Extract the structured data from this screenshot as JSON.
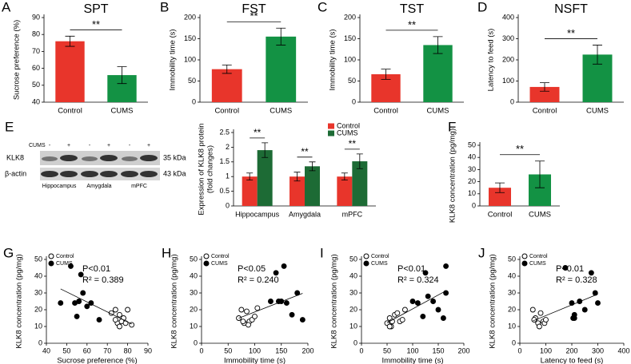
{
  "chart_data": [
    {
      "type": "bar",
      "panel": "A",
      "title": "SPT",
      "ylabel": "Sucrose preference (%)",
      "categories": [
        "Control",
        "CUMS"
      ],
      "values": [
        76,
        56
      ],
      "errors": [
        3,
        5
      ],
      "colors": [
        "#e8352b",
        "#139244"
      ],
      "ylim": [
        40,
        90
      ],
      "yticks": [
        40,
        50,
        60,
        70,
        80,
        90
      ],
      "significance": "**"
    },
    {
      "type": "bar",
      "panel": "B",
      "title": "FST",
      "ylabel": "Immobility time (s)",
      "categories": [
        "Control",
        "CUMS"
      ],
      "values": [
        78,
        155
      ],
      "errors": [
        10,
        20
      ],
      "colors": [
        "#e8352b",
        "#139244"
      ],
      "ylim": [
        0,
        200
      ],
      "yticks": [
        0,
        50,
        100,
        150,
        200
      ],
      "significance": "**"
    },
    {
      "type": "bar",
      "panel": "C",
      "title": "TST",
      "ylabel": "Immobility time (s)",
      "categories": [
        "Control",
        "CUMS"
      ],
      "values": [
        66,
        135
      ],
      "errors": [
        12,
        20
      ],
      "colors": [
        "#e8352b",
        "#139244"
      ],
      "ylim": [
        0,
        200
      ],
      "yticks": [
        0,
        50,
        100,
        150,
        200
      ],
      "significance": "**"
    },
    {
      "type": "bar",
      "panel": "D",
      "title": "NSFT",
      "ylabel": "Latency  to feed (s)",
      "categories": [
        "Control",
        "CUMS"
      ],
      "values": [
        72,
        225
      ],
      "errors": [
        20,
        45
      ],
      "colors": [
        "#e8352b",
        "#139244"
      ],
      "ylim": [
        0,
        400
      ],
      "yticks": [
        0,
        100,
        200,
        300,
        400
      ],
      "significance": "**"
    },
    {
      "type": "grouped_bar",
      "ylabel": [
        "Expression of KLK8 protein",
        "(fold changes)"
      ],
      "categories": [
        "Hippocampus",
        "Amygdala",
        "mPFC"
      ],
      "series": [
        {
          "name": "Control",
          "color": "#e8352b",
          "values": [
            1,
            1,
            1
          ],
          "errors": [
            0.12,
            0.15,
            0.12
          ]
        },
        {
          "name": "CUMS",
          "color": "#1d6b35",
          "values": [
            1.9,
            1.35,
            1.52
          ],
          "errors": [
            0.25,
            0.15,
            0.25
          ]
        }
      ],
      "ylim": [
        0,
        2.5
      ],
      "yticks": [
        0,
        0.5,
        1,
        1.5,
        2,
        2.5
      ],
      "significance": [
        "**",
        "**",
        "**"
      ],
      "legend": "upper right"
    },
    {
      "type": "bar",
      "panel": "F",
      "ylabel": "KLK8 concentration (pg/mg)",
      "categories": [
        "Control",
        "CUMS"
      ],
      "values": [
        15,
        26
      ],
      "errors": [
        4,
        11
      ],
      "colors": [
        "#e8352b",
        "#139244"
      ],
      "ylim": [
        0,
        50
      ],
      "yticks": [
        0,
        10,
        20,
        30,
        40,
        50
      ],
      "significance": "**"
    },
    {
      "type": "scatter",
      "panel": "G",
      "xlabel": "Sucrose preference (%)",
      "ylabel": "KLK8 concentration (pg/mg)",
      "series": [
        {
          "name": "Control",
          "color": "#000000",
          "filled": false,
          "x": [
            74,
            76,
            78,
            80,
            72,
            75,
            77,
            79,
            82,
            74,
            76
          ],
          "y": [
            20,
            17,
            15,
            20,
            18,
            12,
            13,
            12,
            11,
            14,
            10
          ]
        },
        {
          "name": "CUMS",
          "color": "#000000",
          "filled": true,
          "x": [
            47,
            52,
            54,
            56,
            55,
            57,
            58,
            60,
            62,
            66
          ],
          "y": [
            24,
            46,
            24,
            25,
            16,
            41,
            30,
            22,
            24,
            14
          ]
        }
      ],
      "annotations": [
        "P<0.01",
        "R² = 0.389"
      ],
      "xlim": [
        40,
        90
      ],
      "xticks": [
        40,
        50,
        60,
        70,
        80,
        90
      ],
      "ylim": [
        0,
        50
      ],
      "yticks": [
        0,
        10,
        20,
        30,
        40,
        50
      ],
      "trendline": true,
      "legend": "upper left"
    },
    {
      "type": "scatter",
      "panel": "H",
      "xlabel": "Immobility time (s)",
      "ylabel": "KLK8 concentration (pg/mg)",
      "series": [
        {
          "name": "Control",
          "color": "#000000",
          "filled": false,
          "x": [
            70,
            75,
            80,
            85,
            90,
            95,
            100,
            105,
            78,
            88
          ],
          "y": [
            15,
            20,
            12,
            19,
            13,
            14,
            16,
            21,
            13,
            11
          ]
        },
        {
          "name": "CUMS",
          "color": "#000000",
          "filled": true,
          "x": [
            130,
            140,
            145,
            150,
            155,
            160,
            170,
            180,
            190
          ],
          "y": [
            25,
            42,
            25,
            25,
            46,
            24,
            17,
            30,
            14
          ]
        }
      ],
      "annotations": [
        "P<0.05",
        "R² = 0.240"
      ],
      "xlim": [
        0,
        200
      ],
      "xticks": [
        0,
        50,
        100,
        150,
        200
      ],
      "ylim": [
        0,
        50
      ],
      "yticks": [
        0,
        10,
        20,
        30,
        40,
        50
      ],
      "trendline": true,
      "legend": "upper left"
    },
    {
      "type": "scatter",
      "panel": "I",
      "xlabel": "Immobility time (s)",
      "ylabel": "KLK8 concentration (pg/mg)",
      "series": [
        {
          "name": "Control",
          "color": "#000000",
          "filled": false,
          "x": [
            50,
            55,
            58,
            60,
            65,
            70,
            75,
            80,
            85,
            55
          ],
          "y": [
            12,
            15,
            10,
            13,
            17,
            18,
            13,
            14,
            20,
            10
          ]
        },
        {
          "name": "CUMS",
          "color": "#000000",
          "filled": true,
          "x": [
            100,
            110,
            120,
            125,
            130,
            140,
            150,
            160,
            165,
            165
          ],
          "y": [
            25,
            24,
            16,
            42,
            28,
            25,
            20,
            15,
            46,
            30
          ]
        }
      ],
      "annotations": [
        "P<0.01",
        "R² = 0.324"
      ],
      "xlim": [
        0,
        200
      ],
      "xticks": [
        0,
        50,
        100,
        150,
        200
      ],
      "ylim": [
        0,
        50
      ],
      "yticks": [
        0,
        10,
        20,
        30,
        40,
        50
      ],
      "trendline": true,
      "legend": "upper left"
    },
    {
      "type": "scatter",
      "panel": "J",
      "xlabel": "Latency  to feed (s)",
      "ylabel": "KLK8 concentration (pg/mg)",
      "series": [
        {
          "name": "Control",
          "color": "#000000",
          "filled": false,
          "x": [
            50,
            60,
            70,
            75,
            80,
            90,
            95,
            100,
            55
          ],
          "y": [
            20,
            15,
            12,
            10,
            18,
            13,
            12,
            14,
            14
          ]
        },
        {
          "name": "CUMS",
          "color": "#000000",
          "filled": true,
          "x": [
            175,
            200,
            205,
            210,
            230,
            250,
            275,
            290,
            300,
            210
          ],
          "y": [
            45,
            24,
            15,
            17,
            25,
            20,
            42,
            30,
            24,
            15
          ]
        }
      ],
      "annotations": [
        "P<0.01",
        "R² = 0.328"
      ],
      "xlim": [
        0,
        400
      ],
      "xticks": [
        0,
        100,
        200,
        300,
        400
      ],
      "ylim": [
        0,
        50
      ],
      "yticks": [
        0,
        10,
        20,
        30,
        40,
        50
      ],
      "trendline": true,
      "legend": "upper left"
    }
  ],
  "blot": {
    "panel": "E",
    "treatment_label": "CUMS",
    "lanes": [
      "-",
      "+",
      "-",
      "+",
      "-",
      "+"
    ],
    "rows": [
      "KLK8",
      "β-actin"
    ],
    "sizes": [
      "35 kDa",
      "43 kDa"
    ],
    "regions": [
      "Hippocampus",
      "Amygdala",
      "mPFC"
    ]
  }
}
